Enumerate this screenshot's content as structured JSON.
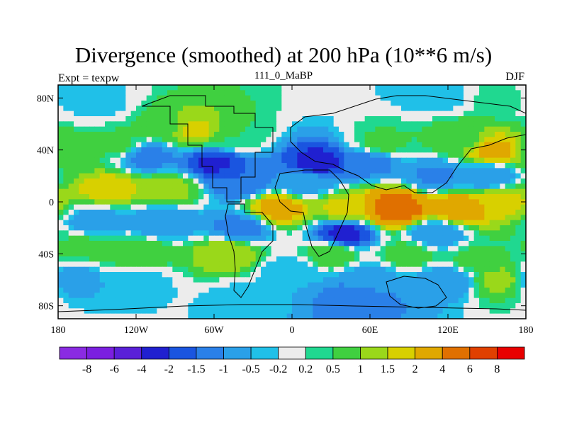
{
  "chart_data": {
    "type": "heatmap",
    "title": "Divergence (smoothed) at 200 hPa (10**6 m/s)",
    "left_label": "Expt = texpw",
    "center_label": "111_0_MaBP",
    "right_label": "DJF",
    "x_axis": {
      "range": [
        -180,
        180
      ],
      "ticks": [
        -180,
        -120,
        -60,
        0,
        60,
        120,
        180
      ],
      "tick_labels": [
        "180",
        "120W",
        "60W",
        "0",
        "60E",
        "120E",
        "180"
      ]
    },
    "y_axis": {
      "range": [
        -90,
        90
      ],
      "ticks": [
        80,
        40,
        0,
        -40,
        -80
      ],
      "tick_labels": [
        "80N",
        "40N",
        "0",
        "40S",
        "80S"
      ]
    },
    "colorbar": {
      "levels": [
        "-8",
        "-6",
        "-4",
        "-2",
        "-1.5",
        "-1",
        "-0.5",
        "-0.2",
        "0.2",
        "0.5",
        "1",
        "1.5",
        "2",
        "4",
        "6",
        "8"
      ],
      "colors": [
        "#8a2be2",
        "#7b1fe0",
        "#5a20d8",
        "#2020d0",
        "#1a55e0",
        "#2a80e8",
        "#2aa0e8",
        "#20c0e8",
        "#ececec",
        "#20d890",
        "#40d040",
        "#9ad81a",
        "#d8d000",
        "#e0a800",
        "#e07000",
        "#e04000",
        "#e80000"
      ]
    },
    "field": [
      {
        "lon": -170,
        "lat": 82,
        "value": -0.4
      },
      {
        "lon": -150,
        "lat": 75,
        "value": -0.3
      },
      {
        "lon": 110,
        "lat": 82,
        "value": -0.4
      },
      {
        "lon": 165,
        "lat": 80,
        "value": 0.4
      },
      {
        "lon": -165,
        "lat": 40,
        "value": 0.6
      },
      {
        "lon": -135,
        "lat": 45,
        "value": 0.6
      },
      {
        "lon": -95,
        "lat": 58,
        "value": 0.9
      },
      {
        "lon": -75,
        "lat": 55,
        "value": 1.6
      },
      {
        "lon": -45,
        "lat": 50,
        "value": 0.5
      },
      {
        "lon": 70,
        "lat": 45,
        "value": 0.6
      },
      {
        "lon": 130,
        "lat": 48,
        "value": 0.8
      },
      {
        "lon": 155,
        "lat": 40,
        "value": 2.2
      },
      {
        "lon": -110,
        "lat": 35,
        "value": -1.2
      },
      {
        "lon": -60,
        "lat": 30,
        "value": -2.1
      },
      {
        "lon": 20,
        "lat": 30,
        "value": -2.2
      },
      {
        "lon": 60,
        "lat": 30,
        "value": -1.2
      },
      {
        "lon": 110,
        "lat": 20,
        "value": -1.1
      },
      {
        "lon": 150,
        "lat": 20,
        "value": -1.0
      },
      {
        "lon": -140,
        "lat": 10,
        "value": 1.8
      },
      {
        "lon": -95,
        "lat": 10,
        "value": 1.2
      },
      {
        "lon": -40,
        "lat": 15,
        "value": -1.5
      },
      {
        "lon": 10,
        "lat": 15,
        "value": -0.8
      },
      {
        "lon": -10,
        "lat": -5,
        "value": 2.3
      },
      {
        "lon": 40,
        "lat": -5,
        "value": 1.6
      },
      {
        "lon": 80,
        "lat": -5,
        "value": 5.0
      },
      {
        "lon": 130,
        "lat": -5,
        "value": 2.5
      },
      {
        "lon": 160,
        "lat": 0,
        "value": 1.7
      },
      {
        "lon": -150,
        "lat": -15,
        "value": -0.8
      },
      {
        "lon": -100,
        "lat": -15,
        "value": -1.0
      },
      {
        "lon": -40,
        "lat": -20,
        "value": -1.2
      },
      {
        "lon": 40,
        "lat": -25,
        "value": -2.2
      },
      {
        "lon": 110,
        "lat": -25,
        "value": -1.0
      },
      {
        "lon": -160,
        "lat": -35,
        "value": 0.6
      },
      {
        "lon": -120,
        "lat": -40,
        "value": 1.0
      },
      {
        "lon": -50,
        "lat": -40,
        "value": 1.5
      },
      {
        "lon": 30,
        "lat": -40,
        "value": 0.8
      },
      {
        "lon": 90,
        "lat": -40,
        "value": 0.7
      },
      {
        "lon": 140,
        "lat": -45,
        "value": 0.6
      },
      {
        "lon": -170,
        "lat": -60,
        "value": -0.8
      },
      {
        "lon": -120,
        "lat": -60,
        "value": -0.4
      },
      {
        "lon": 0,
        "lat": -55,
        "value": -0.5
      },
      {
        "lon": 60,
        "lat": -60,
        "value": -0.8
      },
      {
        "lon": 120,
        "lat": -60,
        "value": -1.0
      },
      {
        "lon": 160,
        "lat": -60,
        "value": 1.2
      },
      {
        "lon": 50,
        "lat": -75,
        "value": -1.5
      },
      {
        "lon": -40,
        "lat": -75,
        "value": -0.3
      }
    ]
  }
}
